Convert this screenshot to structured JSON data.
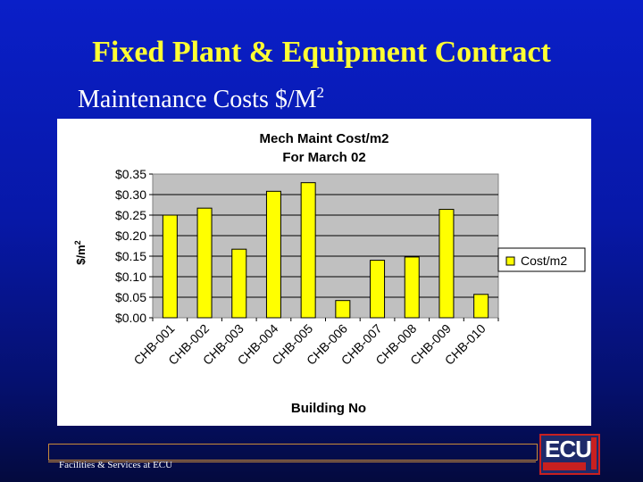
{
  "slide": {
    "title": "Fixed Plant & Equipment Contract",
    "subtitle": "Maintenance Costs $/M",
    "subtitle_sup": "2",
    "footer": "Facilities & Services at ECU",
    "logo_text": "ECU"
  },
  "colors": {
    "background": "#0718a8",
    "title": "#ffff33",
    "bar_fill": "#ffff00",
    "bar_stroke": "#000000",
    "plot_background": "#c0c0c0"
  },
  "chart_data": {
    "type": "bar",
    "title": "Mech Maint Cost/m2",
    "subtitle": "For March 02",
    "xlabel": "Building No",
    "ylabel": "$/m",
    "ylabel_sup": "2",
    "categories": [
      "CHB-001",
      "CHB-002",
      "CHB-003",
      "CHB-004",
      "CHB-005",
      "CHB-006",
      "CHB-007",
      "CHB-008",
      "CHB-009",
      "CHB-010"
    ],
    "series": [
      {
        "name": "Cost/m2",
        "values": [
          0.25,
          0.267,
          0.167,
          0.308,
          0.329,
          0.042,
          0.14,
          0.148,
          0.264,
          0.057
        ]
      }
    ],
    "ylim": [
      0,
      0.35
    ],
    "yticks": [
      "$0.00",
      "$0.05",
      "$0.10",
      "$0.15",
      "$0.20",
      "$0.25",
      "$0.30",
      "$0.35"
    ],
    "grid": true,
    "legend_position": "right"
  }
}
